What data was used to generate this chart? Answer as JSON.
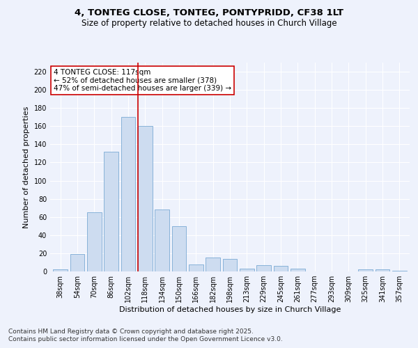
{
  "title_line1": "4, TONTEG CLOSE, TONTEG, PONTYPRIDD, CF38 1LT",
  "title_line2": "Size of property relative to detached houses in Church Village",
  "xlabel": "Distribution of detached houses by size in Church Village",
  "ylabel": "Number of detached properties",
  "categories": [
    "38sqm",
    "54sqm",
    "70sqm",
    "86sqm",
    "102sqm",
    "118sqm",
    "134sqm",
    "150sqm",
    "166sqm",
    "182sqm",
    "198sqm",
    "213sqm",
    "229sqm",
    "245sqm",
    "261sqm",
    "277sqm",
    "293sqm",
    "309sqm",
    "325sqm",
    "341sqm",
    "357sqm"
  ],
  "values": [
    2,
    19,
    65,
    132,
    170,
    160,
    68,
    50,
    8,
    15,
    14,
    3,
    7,
    6,
    3,
    0,
    0,
    0,
    2,
    2,
    1
  ],
  "bar_color": "#cddcf0",
  "bar_edge_color": "#7aaad4",
  "vline_x_index": 5,
  "vline_color": "#cc0000",
  "annotation_text": "4 TONTEG CLOSE: 117sqm\n← 52% of detached houses are smaller (378)\n47% of semi-detached houses are larger (339) →",
  "annotation_box_color": "#ffffff",
  "annotation_box_edge": "#cc0000",
  "ylim": [
    0,
    230
  ],
  "yticks": [
    0,
    20,
    40,
    60,
    80,
    100,
    120,
    140,
    160,
    180,
    200,
    220
  ],
  "footer_line1": "Contains HM Land Registry data © Crown copyright and database right 2025.",
  "footer_line2": "Contains public sector information licensed under the Open Government Licence v3.0.",
  "background_color": "#eef2fc",
  "grid_color": "#ffffff",
  "title_fontsize": 9.5,
  "subtitle_fontsize": 8.5,
  "axis_label_fontsize": 8,
  "tick_fontsize": 7,
  "annotation_fontsize": 7.5,
  "footer_fontsize": 6.5
}
